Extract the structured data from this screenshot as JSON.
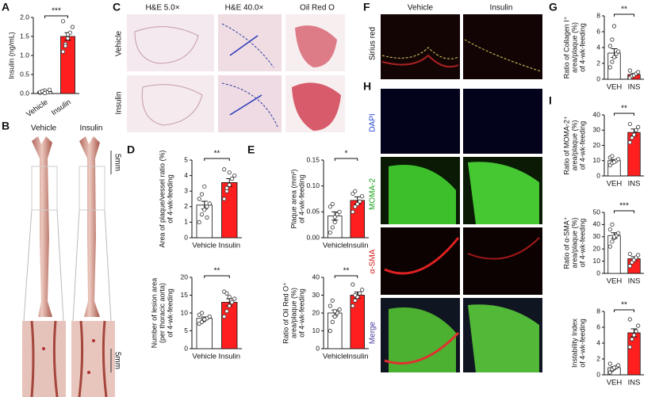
{
  "panels": {
    "letters": [
      "A",
      "B",
      "C",
      "D",
      "E",
      "F",
      "G",
      "H",
      "I"
    ],
    "B": {
      "columns": [
        "Vehicle",
        "Insulin"
      ],
      "scale": "5mm"
    },
    "C": {
      "columns": [
        "H&E 5.0×",
        "H&E 40.0×",
        "Oil Red O"
      ],
      "rows": [
        "Vehicle",
        "Insulin"
      ]
    },
    "F": {
      "columns": [
        "Vehicle",
        "Insulin"
      ],
      "row": "Sirius red"
    },
    "H": {
      "rows": [
        "DAPI",
        "MOMA-2",
        "α-SMA",
        "Merge"
      ]
    }
  },
  "chart_data": [
    {
      "type": "bar",
      "ylabel": [
        "Insulin (ng/mL)"
      ],
      "categories": [
        "Vehicle",
        "Insulin"
      ],
      "values": [
        0.05,
        1.5
      ],
      "errors": [
        0.02,
        0.1
      ],
      "colors": [
        "#ffffff",
        "#ff1f1f"
      ],
      "points": [
        [
          0.02,
          0.05,
          0.08,
          0.03,
          0.1,
          0.04,
          0.06,
          0.01
        ],
        [
          1.1,
          1.3,
          1.45,
          1.6,
          1.75,
          1.9,
          1.25,
          1.55
        ]
      ],
      "significance": "***",
      "ylim": [
        0,
        2
      ],
      "yticks": [
        {
          "value": 0,
          "label": "0.0"
        },
        {
          "value": 0.5,
          "label": "0.5"
        },
        {
          "value": 1,
          "label": "1.0"
        },
        {
          "value": 1.5,
          "label": "1.5"
        },
        {
          "value": 2,
          "label": "2.0"
        }
      ]
    },
    {
      "type": "bar",
      "ylabel": [
        "Area of plaque/vessel ratio (%)",
        "of 4-wk-feeding"
      ],
      "categories": [
        "Vehicle",
        "Insulin"
      ],
      "values": [
        2.1,
        3.55
      ],
      "errors": [
        0.25,
        0.25
      ],
      "colors": [
        "#ffffff",
        "#ff1f1f"
      ],
      "points": [
        [
          1.0,
          1.5,
          1.8,
          2.0,
          2.2,
          2.5,
          2.8,
          3.3,
          1.3
        ],
        [
          2.5,
          3.0,
          3.4,
          3.8,
          4.0,
          4.4,
          3.2,
          4.2
        ]
      ],
      "significance": "**",
      "ylim": [
        0,
        5
      ],
      "yticks": [
        0,
        1,
        2,
        3,
        4,
        5
      ]
    },
    {
      "type": "bar",
      "ylabel": [
        "Number of lesion area",
        "(per thoracic aorta)",
        "of 4-wk-feeding"
      ],
      "categories": [
        "Vehicle",
        "Insulin"
      ],
      "values": [
        8.5,
        13
      ],
      "errors": [
        0.4,
        1.0
      ],
      "colors": [
        "#ffffff",
        "#ff1f1f"
      ],
      "points": [
        [
          7,
          7.5,
          8,
          8.5,
          9,
          9.5,
          10,
          8.2
        ],
        [
          9,
          10.5,
          12,
          13,
          14,
          16,
          15.5,
          14.5
        ]
      ],
      "significance": "**",
      "ylim": [
        0,
        20
      ],
      "yticks": [
        0,
        5,
        10,
        15,
        20
      ]
    },
    {
      "type": "bar",
      "ylabel": [
        "Plaque area (mm²)",
        "of 4-wk-feeding"
      ],
      "categories": [
        "Vehicle",
        "Insulin"
      ],
      "values": [
        0.042,
        0.072
      ],
      "errors": [
        0.008,
        0.007
      ],
      "colors": [
        "#ffffff",
        "#ff1f1f"
      ],
      "points": [
        [
          0.01,
          0.02,
          0.03,
          0.045,
          0.05,
          0.06,
          0.065,
          0.04
        ],
        [
          0.05,
          0.06,
          0.065,
          0.07,
          0.08,
          0.085,
          0.09
        ]
      ],
      "significance": "*",
      "ylim": [
        0,
        0.15
      ],
      "yticks": [
        {
          "value": 0,
          "label": "0.00"
        },
        {
          "value": 0.05,
          "label": "0.05"
        },
        {
          "value": 0.1,
          "label": "0.10"
        },
        {
          "value": 0.15,
          "label": "0.15"
        }
      ]
    },
    {
      "type": "bar",
      "ylabel": [
        "Ratio of Oil Red O⁺",
        "area/plaque (%)",
        "of 4-wk-feeding"
      ],
      "categories": [
        "Vehicle",
        "Insulin"
      ],
      "values": [
        20,
        30
      ],
      "errors": [
        1.7,
        1.8
      ],
      "colors": [
        "#ffffff",
        "#ff1f1f"
      ],
      "points": [
        [
          10,
          15,
          18,
          20,
          22,
          24,
          27,
          21
        ],
        [
          24,
          27,
          29,
          31,
          33,
          36,
          30
        ]
      ],
      "significance": "**",
      "ylim": [
        0,
        40
      ],
      "yticks": [
        0,
        10,
        20,
        30,
        40
      ]
    },
    {
      "type": "bar",
      "ylabel": [
        "Ratio of Collagen I⁺",
        "area/plaque (%)",
        "of 4-wk-feeding"
      ],
      "categories": [
        "VEH",
        "INS"
      ],
      "values": [
        3.3,
        0.6
      ],
      "errors": [
        0.55,
        0.12
      ],
      "colors": [
        "#ffffff",
        "#ff1f1f"
      ],
      "points": [
        [
          1.5,
          2.2,
          2.8,
          3.2,
          3.5,
          4.2,
          5.0,
          6.7
        ],
        [
          0.2,
          0.4,
          0.5,
          0.7,
          0.9,
          1.1
        ]
      ],
      "significance": "**",
      "ylim": [
        0,
        8
      ],
      "yticks": [
        0,
        2,
        4,
        6,
        8
      ]
    },
    {
      "type": "bar",
      "ylabel": [
        "Ratio of MOMA-2⁺",
        "area/plaque (%)",
        "of 4-wk-feeding"
      ],
      "categories": [
        "VEH",
        "INS"
      ],
      "values": [
        10,
        28.5
      ],
      "errors": [
        0.7,
        2.2
      ],
      "colors": [
        "#ffffff",
        "#ff1f1f"
      ],
      "points": [
        [
          7,
          8.5,
          9.5,
          10,
          11,
          12,
          13,
          9
        ],
        [
          22,
          25,
          27,
          30,
          32,
          34
        ]
      ],
      "significance": "**",
      "ylim": [
        0,
        40
      ],
      "yticks": [
        0,
        10,
        20,
        30,
        40
      ]
    },
    {
      "type": "bar",
      "ylabel": [
        "Ratio of α-SMA⁺",
        "area/plaque (%)",
        "of 4-wk-feeding"
      ],
      "categories": [
        "VEH",
        "INS"
      ],
      "values": [
        31,
        12
      ],
      "errors": [
        2.3,
        1.6
      ],
      "colors": [
        "#ffffff",
        "#ff1f1f"
      ],
      "points": [
        [
          22,
          26,
          29,
          31,
          33,
          36,
          40,
          30
        ],
        [
          6,
          9,
          11,
          13,
          15,
          16
        ]
      ],
      "significance": "***",
      "ylim": [
        0,
        50
      ],
      "yticks": [
        0,
        10,
        20,
        30,
        40,
        50
      ]
    },
    {
      "type": "bar",
      "ylabel": [
        "Instability Index",
        "of 4-wk-feeding"
      ],
      "categories": [
        "VEH",
        "INS"
      ],
      "values": [
        0.9,
        5.3
      ],
      "errors": [
        0.12,
        0.5
      ],
      "colors": [
        "#ffffff",
        "#ff1f1f"
      ],
      "points": [
        [
          0.3,
          0.6,
          0.8,
          1.0,
          1.2,
          1.4,
          0.7,
          0.9
        ],
        [
          3.5,
          4.5,
          5.0,
          5.5,
          6.2,
          7.0
        ]
      ],
      "significance": "**",
      "ylim": [
        0,
        8
      ],
      "yticks": [
        0,
        2,
        4,
        6,
        8
      ]
    }
  ]
}
